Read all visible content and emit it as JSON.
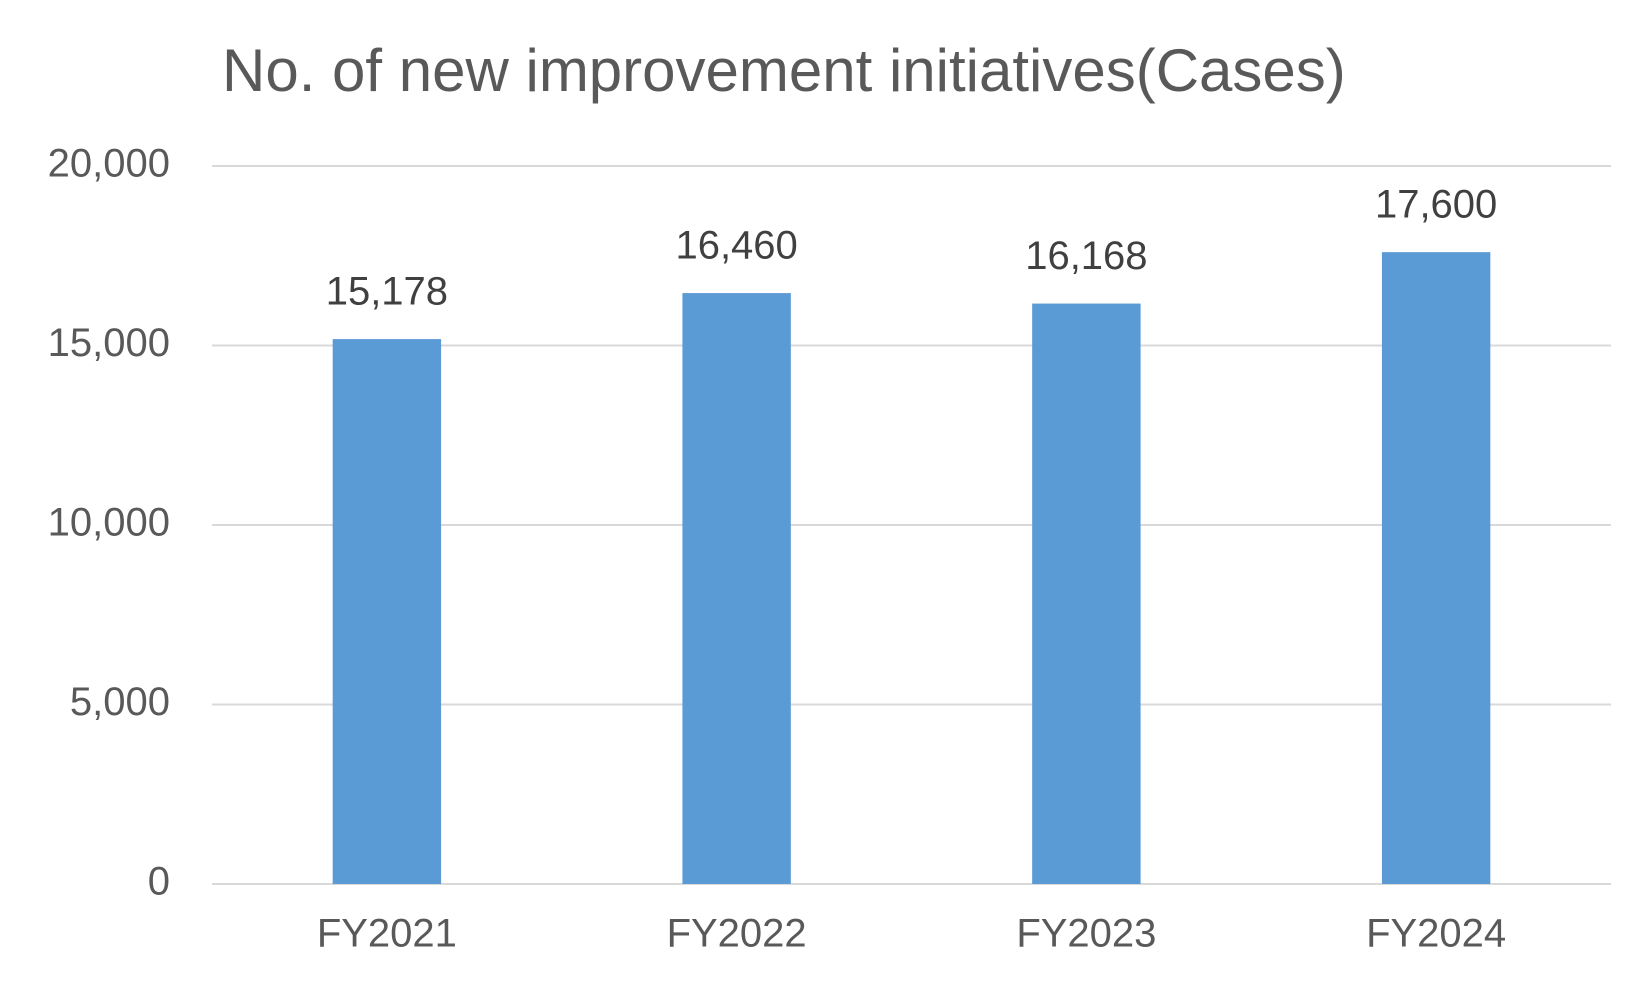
{
  "chart_data": {
    "type": "bar",
    "title": "No. of new improvement initiatives(Cases)",
    "categories": [
      "FY2021",
      "FY2022",
      "FY2023",
      "FY2024"
    ],
    "values": [
      15178,
      16460,
      16168,
      17600
    ],
    "value_labels": [
      "15,178",
      "16,460",
      "16,168",
      "17,600"
    ],
    "color": "#5b9bd5",
    "ylim": [
      0,
      20000
    ],
    "yticks": [
      0,
      {
        "value": 5000,
        "label": "5,000"
      },
      {
        "value": 10000,
        "label": "10,000"
      },
      {
        "value": 15000,
        "label": "15,000"
      },
      {
        "value": 20000,
        "label": "20,000"
      }
    ],
    "grid": true
  }
}
